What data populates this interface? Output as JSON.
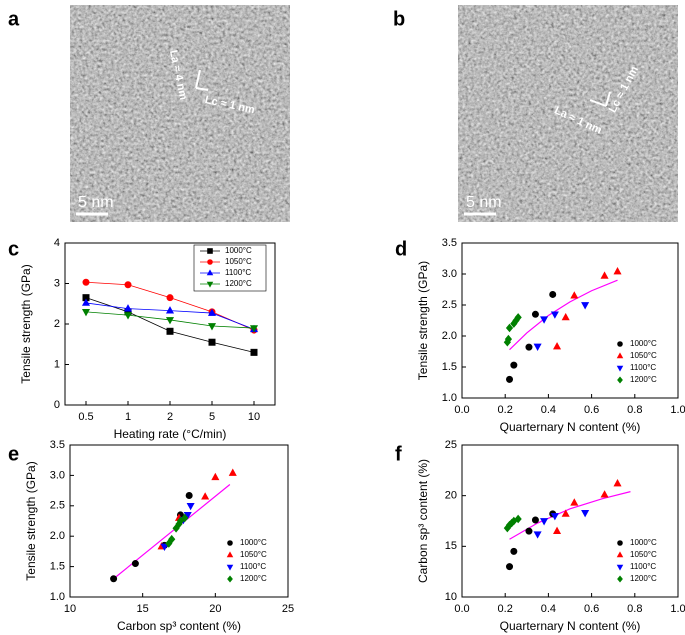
{
  "images": [
    {
      "panel": "a",
      "scale_bar": "5 nm",
      "annotations": [
        "La ≈ 4 nm",
        "Lc ≈ 1 nm"
      ]
    },
    {
      "panel": "b",
      "scale_bar": "5 nm",
      "annotations": [
        "La ≈ 1 nm",
        "Lc ≈ 1 nm"
      ]
    }
  ],
  "chart_data": [
    {
      "type": "line",
      "panel": "c",
      "x_label": "Heating rate (°C/min)",
      "y_label": "Tensile strength (GPa)",
      "categories": [
        "0.5",
        "1",
        "2",
        "5",
        "10"
      ],
      "ylim": [
        0,
        4
      ],
      "yticks": [
        0,
        1,
        2,
        3,
        4
      ],
      "legend": "upper right",
      "series": [
        {
          "name": "1000°C",
          "color": "#000000",
          "marker": "square",
          "values": [
            2.65,
            2.3,
            1.82,
            1.55,
            1.3
          ]
        },
        {
          "name": "1050°C",
          "color": "#ff0000",
          "marker": "circle",
          "values": [
            3.03,
            2.97,
            2.65,
            2.3,
            1.85
          ]
        },
        {
          "name": "1100°C",
          "color": "#0000ff",
          "marker": "triangle-up",
          "values": [
            2.52,
            2.38,
            2.33,
            2.27,
            1.87
          ]
        },
        {
          "name": "1200°C",
          "color": "#008000",
          "marker": "triangle-down",
          "values": [
            2.3,
            2.22,
            2.1,
            1.95,
            1.9
          ]
        }
      ]
    },
    {
      "type": "scatter",
      "panel": "d",
      "x_label": "Quarternary N content (%)",
      "y_label": "Tensile strength (GPa)",
      "xlim": [
        0,
        1
      ],
      "xticks": [
        {
          "value": 0,
          "label": "0.0"
        },
        0.2,
        0.4,
        0.6,
        0.8,
        {
          "value": 1,
          "label": "1.0"
        }
      ],
      "ylim": [
        1,
        3.5
      ],
      "yticks": [
        {
          "value": 1,
          "label": "1.0"
        },
        1.5,
        {
          "value": 2,
          "label": "2.0"
        },
        2.5,
        {
          "value": 3,
          "label": "3.0"
        },
        3.5
      ],
      "legend": "lower right",
      "series": [
        {
          "name": "1000°C",
          "color": "#000000",
          "marker": "circle",
          "x": [
            0.22,
            0.24,
            0.31,
            0.34,
            0.42
          ],
          "values": [
            1.3,
            1.53,
            1.82,
            2.35,
            2.67
          ]
        },
        {
          "name": "1050°C",
          "color": "#ff0000",
          "marker": "triangle-up",
          "x": [
            0.44,
            0.48,
            0.52,
            0.66,
            0.72
          ],
          "values": [
            1.83,
            2.3,
            2.65,
            2.97,
            3.04
          ]
        },
        {
          "name": "1100°C",
          "color": "#0000ff",
          "marker": "triangle-down",
          "x": [
            0.35,
            0.38,
            0.43,
            0.57
          ],
          "values": [
            1.83,
            2.27,
            2.35,
            2.5
          ]
        },
        {
          "name": "1200°C",
          "color": "#008000",
          "marker": "diamond",
          "x": [
            0.21,
            0.215,
            0.22,
            0.24,
            0.25,
            0.26
          ],
          "values": [
            1.9,
            1.95,
            2.13,
            2.2,
            2.25,
            2.3
          ]
        }
      ],
      "fit": {
        "color": "#ff00ff",
        "x": [
          0.22,
          0.3,
          0.4,
          0.5,
          0.6,
          0.72
        ],
        "values": [
          1.78,
          2.05,
          2.33,
          2.55,
          2.73,
          2.9
        ]
      }
    },
    {
      "type": "scatter",
      "panel": "e",
      "x_label": "Carbon sp³ content (%)",
      "y_label": "Tensile strength (GPa)",
      "xlim": [
        10,
        25
      ],
      "xticks": [
        10,
        15,
        20,
        25
      ],
      "ylim": [
        1,
        3.5
      ],
      "yticks": [
        {
          "value": 1,
          "label": "1.0"
        },
        1.5,
        {
          "value": 2,
          "label": "2.0"
        },
        2.5,
        {
          "value": 3,
          "label": "3.0"
        },
        3.5
      ],
      "legend": "lower right",
      "series": [
        {
          "name": "1000°C",
          "color": "#000000",
          "marker": "circle",
          "x": [
            13,
            14.5,
            16.5,
            17.6,
            18.2
          ],
          "values": [
            1.3,
            1.55,
            1.85,
            2.35,
            2.67
          ]
        },
        {
          "name": "1050°C",
          "color": "#ff0000",
          "marker": "triangle-up",
          "x": [
            16.3,
            17.5,
            19.3,
            20,
            21.2
          ],
          "values": [
            1.83,
            2.3,
            2.65,
            2.97,
            3.04
          ]
        },
        {
          "name": "1100°C",
          "color": "#0000ff",
          "marker": "triangle-down",
          "x": [
            16.5,
            17.8,
            18.1,
            18.3
          ],
          "values": [
            1.83,
            2.27,
            2.35,
            2.5
          ]
        },
        {
          "name": "1200°C",
          "color": "#008000",
          "marker": "diamond",
          "x": [
            16.8,
            17,
            17.3,
            17.5,
            17.6,
            17.9
          ],
          "values": [
            1.88,
            1.95,
            2.13,
            2.2,
            2.25,
            2.3
          ]
        }
      ],
      "fit": {
        "color": "#ff00ff",
        "x": [
          13,
          21
        ],
        "values": [
          1.3,
          2.85
        ]
      }
    },
    {
      "type": "scatter",
      "panel": "f",
      "x_label": "Quarternary N content (%)",
      "y_label": "Carbon sp³ content (%)",
      "xlim": [
        0,
        1
      ],
      "xticks": [
        {
          "value": 0,
          "label": "0.0"
        },
        0.2,
        0.4,
        0.6,
        0.8,
        {
          "value": 1,
          "label": "1.0"
        }
      ],
      "ylim": [
        10,
        25
      ],
      "yticks": [
        10,
        15,
        20,
        25
      ],
      "legend": "lower right",
      "series": [
        {
          "name": "1000°C",
          "color": "#000000",
          "marker": "circle",
          "x": [
            0.22,
            0.24,
            0.31,
            0.34,
            0.42
          ],
          "values": [
            13,
            14.5,
            16.5,
            17.6,
            18.2
          ]
        },
        {
          "name": "1050°C",
          "color": "#ff0000",
          "marker": "triangle-up",
          "x": [
            0.44,
            0.48,
            0.52,
            0.66,
            0.72
          ],
          "values": [
            16.5,
            18.2,
            19.3,
            20.1,
            21.2
          ]
        },
        {
          "name": "1100°C",
          "color": "#0000ff",
          "marker": "triangle-down",
          "x": [
            0.35,
            0.38,
            0.43,
            0.57
          ],
          "values": [
            16.2,
            17.5,
            18,
            18.3
          ]
        },
        {
          "name": "1200°C",
          "color": "#008000",
          "marker": "diamond",
          "x": [
            0.21,
            0.22,
            0.23,
            0.24,
            0.26
          ],
          "values": [
            16.8,
            17.1,
            17.3,
            17.5,
            17.7
          ]
        }
      ],
      "fit": {
        "color": "#ff00ff",
        "x": [
          0.22,
          0.35,
          0.5,
          0.65,
          0.78
        ],
        "values": [
          15.7,
          17.3,
          18.7,
          19.7,
          20.4
        ]
      }
    }
  ]
}
